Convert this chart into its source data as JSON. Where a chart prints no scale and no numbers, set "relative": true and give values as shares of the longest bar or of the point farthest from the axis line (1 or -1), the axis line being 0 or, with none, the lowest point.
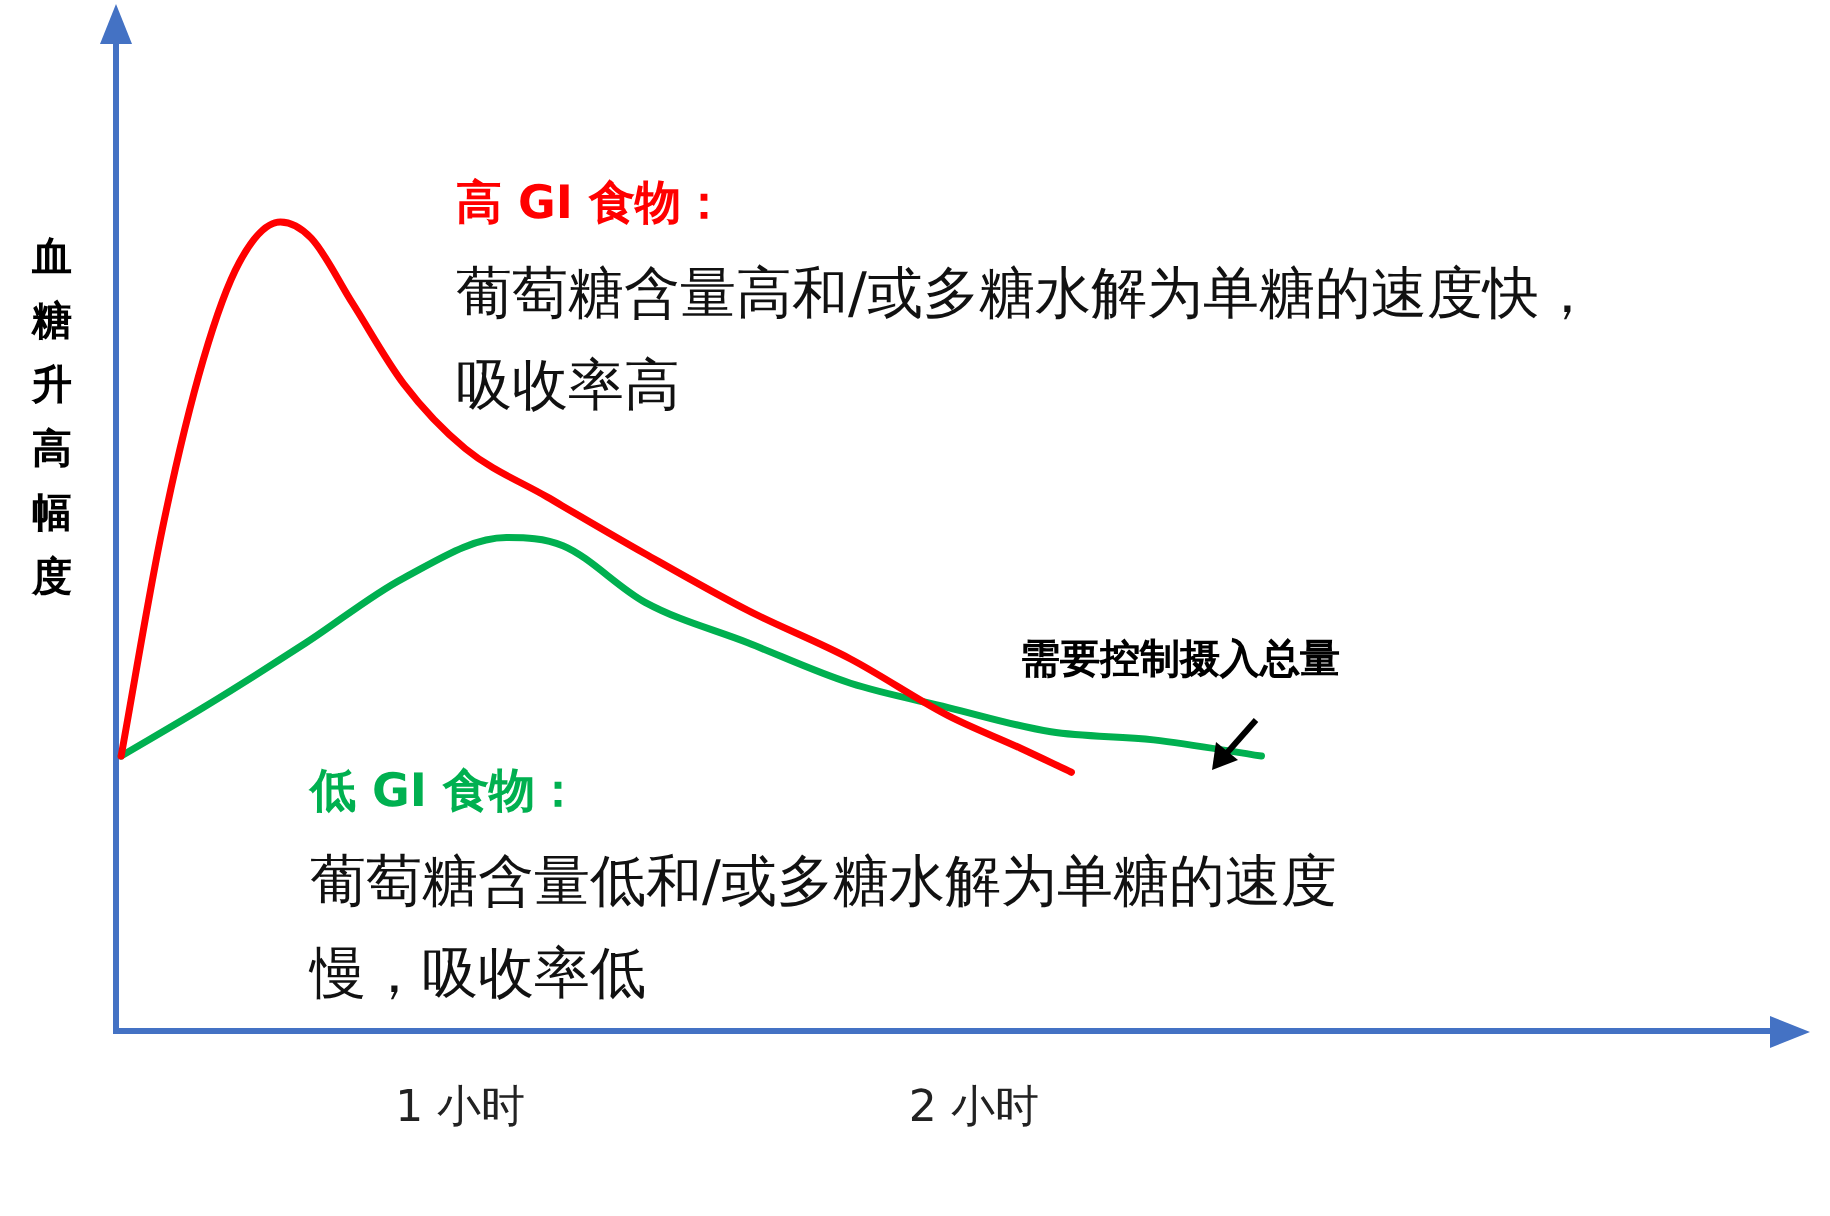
{
  "chart_data": {
    "type": "line",
    "relative": true,
    "ylabel": "血糖升高幅度",
    "xlim": [
      0.33,
      3.55
    ],
    "xticks": [
      {
        "value": 1,
        "label": "1 小时"
      },
      {
        "value": 2,
        "label": "2 小时"
      }
    ],
    "grid": false,
    "legend": false,
    "marker": "none",
    "line_style": "solid",
    "series": [
      {
        "name": "高 GI 食物：",
        "color": "#ff0000",
        "x": [
          0.34,
          0.42,
          0.5,
          0.57,
          0.65,
          0.71,
          0.79,
          0.89,
          1.01,
          1.17,
          1.36,
          1.56,
          1.76,
          1.95,
          2.09,
          2.19
        ],
        "values": [
          0.34,
          0.62,
          0.83,
          0.95,
          1,
          0.98,
          0.9,
          0.8,
          0.72,
          0.66,
          0.59,
          0.52,
          0.46,
          0.39,
          0.35,
          0.32
        ]
      },
      {
        "name": "低 GI 食物：",
        "color": "#00b050",
        "x": [
          0.34,
          0.5,
          0.7,
          0.89,
          1.09,
          1.2,
          1.36,
          1.56,
          1.76,
          1.95,
          2.15,
          2.35,
          2.56
        ],
        "values": [
          0.34,
          0.4,
          0.48,
          0.56,
          0.61,
          0.6,
          0.53,
          0.48,
          0.43,
          0.4,
          0.37,
          0.36,
          0.34
        ]
      }
    ],
    "annotations": [
      "葡萄糖含量高和/或多糖水解为单糖的速度快，吸收率高",
      "葡萄糖含量低和/或多糖水解为单糖的速度慢，吸收率低",
      "需要控制摄入总量"
    ]
  }
}
